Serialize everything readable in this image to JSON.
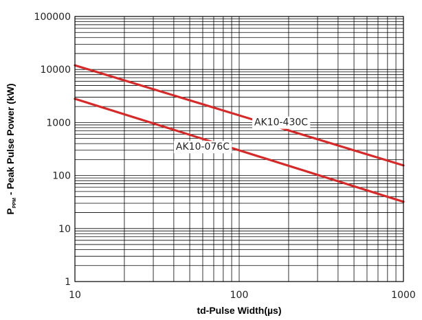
{
  "chart_data": {
    "type": "line",
    "xlabel": "td-Pulse Width(µs)",
    "ylabel": {
      "prefix": "P",
      "subscript": "PPM",
      "suffix": " - Peak Pulse Power (kW)"
    },
    "x_scale": "log",
    "y_scale": "log",
    "xlim": [
      10,
      1000
    ],
    "ylim": [
      1,
      100000
    ],
    "x_ticks": [
      "10",
      "100",
      "1000"
    ],
    "y_ticks": [
      "1",
      "10",
      "100",
      "1000",
      "10000",
      "100000"
    ],
    "grid": true,
    "series": [
      {
        "name": "AK10-430C",
        "x": [
          10,
          1000
        ],
        "y": [
          12000,
          155
        ],
        "color": "#d42a2a"
      },
      {
        "name": "AK10-076C",
        "x": [
          10,
          1000
        ],
        "y": [
          2800,
          32
        ],
        "color": "#d42a2a"
      }
    ]
  }
}
